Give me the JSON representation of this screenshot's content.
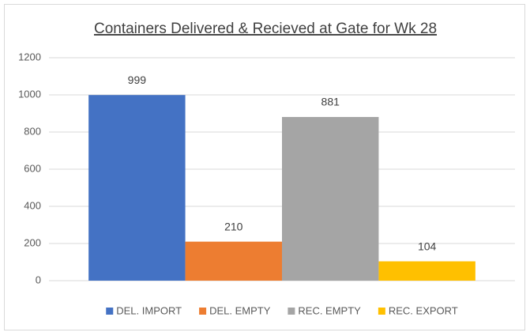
{
  "chart_data": {
    "type": "bar",
    "title": "Containers Delivered & Recieved at Gate for Wk 28",
    "categories": [
      null
    ],
    "series": [
      {
        "name": "DEL. IMPORT",
        "color": "#4472c4",
        "values": [
          999
        ]
      },
      {
        "name": "DEL. EMPTY",
        "color": "#ed7d31",
        "values": [
          210
        ]
      },
      {
        "name": "REC. EMPTY",
        "color": "#a5a5a5",
        "values": [
          881
        ]
      },
      {
        "name": "REC. EXPORT",
        "color": "#ffc000",
        "values": [
          104
        ]
      }
    ],
    "ylim": [
      0,
      1200
    ],
    "yticks": [
      0,
      200,
      400,
      600,
      800,
      1000,
      1200
    ],
    "grid": true,
    "data_labels": true,
    "legend": "bottom"
  }
}
